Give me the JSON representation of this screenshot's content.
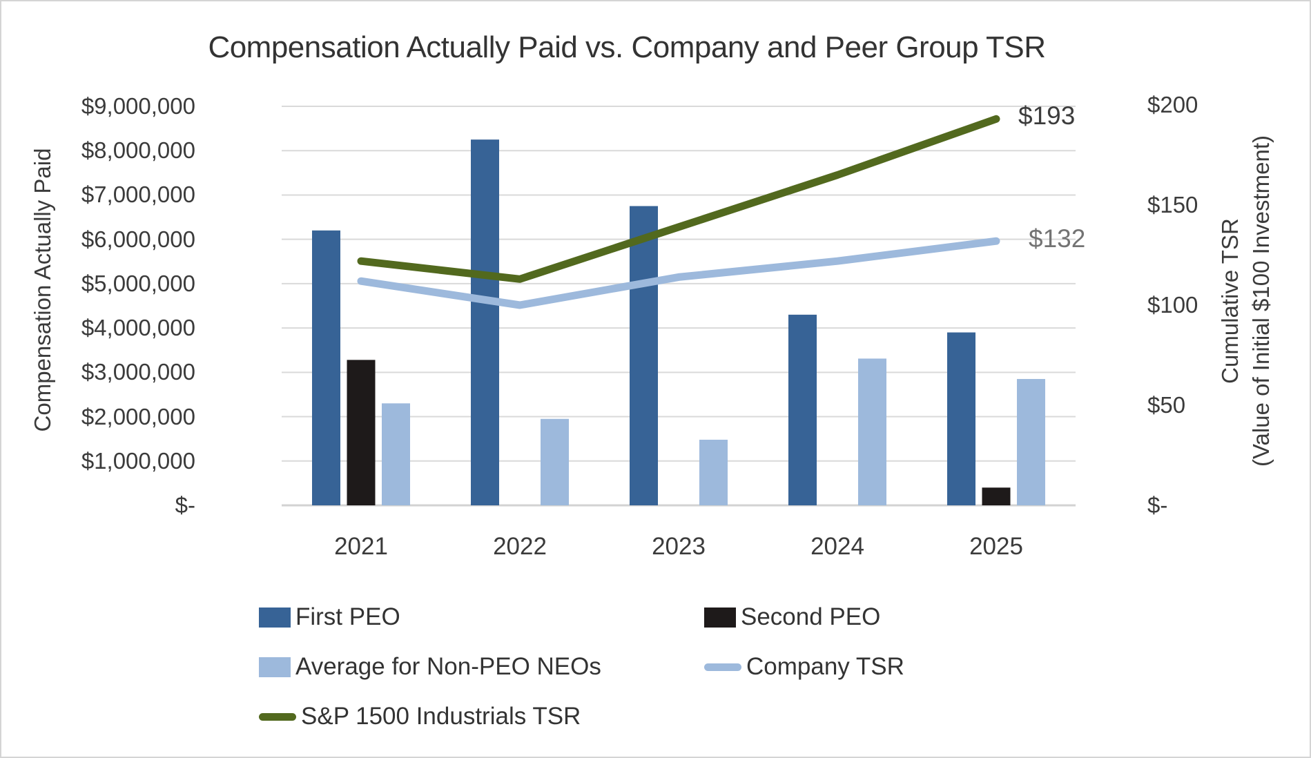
{
  "title": "Compensation Actually Paid vs. Company and Peer Group TSR",
  "colors": {
    "first_peo": "#376396",
    "second_peo": "#1e1a1a",
    "non_peo": "#9db9dc",
    "company_tsr": "#9db9dc",
    "sp1500_tsr": "#52691e",
    "grid": "#d9d9d9",
    "axis_line": "#d2d2d2",
    "label_dark": "#3c3c3c",
    "label_gray": "#737373"
  },
  "chart_data": {
    "type": "combo-bar-line",
    "categories": [
      "2021",
      "2022",
      "2023",
      "2024",
      "2025"
    ],
    "bar_series": [
      {
        "name": "First PEO",
        "axis": "left",
        "color_key": "first_peo",
        "values": [
          6200000,
          8250000,
          6750000,
          4300000,
          3900000
        ]
      },
      {
        "name": "Second PEO",
        "axis": "left",
        "color_key": "second_peo",
        "values": [
          3280000,
          null,
          null,
          null,
          400000
        ]
      },
      {
        "name": "Average for Non-PEO NEOs",
        "axis": "left",
        "color_key": "non_peo",
        "values": [
          2300000,
          1950000,
          1480000,
          3310000,
          2850000
        ]
      }
    ],
    "line_series": [
      {
        "name": "Company TSR",
        "axis": "right",
        "color_key": "company_tsr",
        "values": [
          112,
          100,
          114,
          122,
          132
        ],
        "end_label": "$132"
      },
      {
        "name": "S&P 1500 Industrials TSR",
        "axis": "right",
        "color_key": "sp1500_tsr",
        "values": [
          122,
          113,
          139,
          165,
          193
        ],
        "end_label": "$193"
      }
    ],
    "left_axis": {
      "title": "Compensation Actually Paid",
      "min": 0,
      "max": 9000000,
      "gridlines": true,
      "ticks": [
        {
          "label": "$9,000,000",
          "value": 9000000
        },
        {
          "label": "$8,000,000",
          "value": 8000000
        },
        {
          "label": "$7,000,000",
          "value": 7000000
        },
        {
          "label": "$6,000,000",
          "value": 6000000
        },
        {
          "label": "$5,000,000",
          "value": 5000000
        },
        {
          "label": "$4,000,000",
          "value": 4000000
        },
        {
          "label": "$3,000,000",
          "value": 3000000
        },
        {
          "label": "$2,000,000",
          "value": 2000000
        },
        {
          "label": "$1,000,000",
          "value": 1000000
        },
        {
          "label": "$-",
          "value": 0
        }
      ]
    },
    "right_axis": {
      "title_line1": "Cumulative TSR",
      "title_line2": "(Value of Initial $100 Investment)",
      "min": 0,
      "max": 200,
      "ticks": [
        {
          "label": "$200",
          "value": 200
        },
        {
          "label": "$150",
          "value": 150
        },
        {
          "label": "$100",
          "value": 100
        },
        {
          "label": "$50",
          "value": 50
        },
        {
          "label": "$-",
          "value": 0
        }
      ]
    },
    "legend_position": "bottom"
  },
  "legend": {
    "items": [
      {
        "label": "First PEO",
        "swatch": "bar",
        "color_key": "first_peo"
      },
      {
        "label": "Second PEO",
        "swatch": "bar",
        "color_key": "second_peo"
      },
      {
        "label": "Average for Non-PEO NEOs",
        "swatch": "bar",
        "color_key": "non_peo"
      },
      {
        "label": "Company TSR",
        "swatch": "line",
        "color_key": "company_tsr"
      },
      {
        "label": "S&P 1500 Industrials TSR",
        "swatch": "line",
        "color_key": "sp1500_tsr"
      }
    ]
  }
}
